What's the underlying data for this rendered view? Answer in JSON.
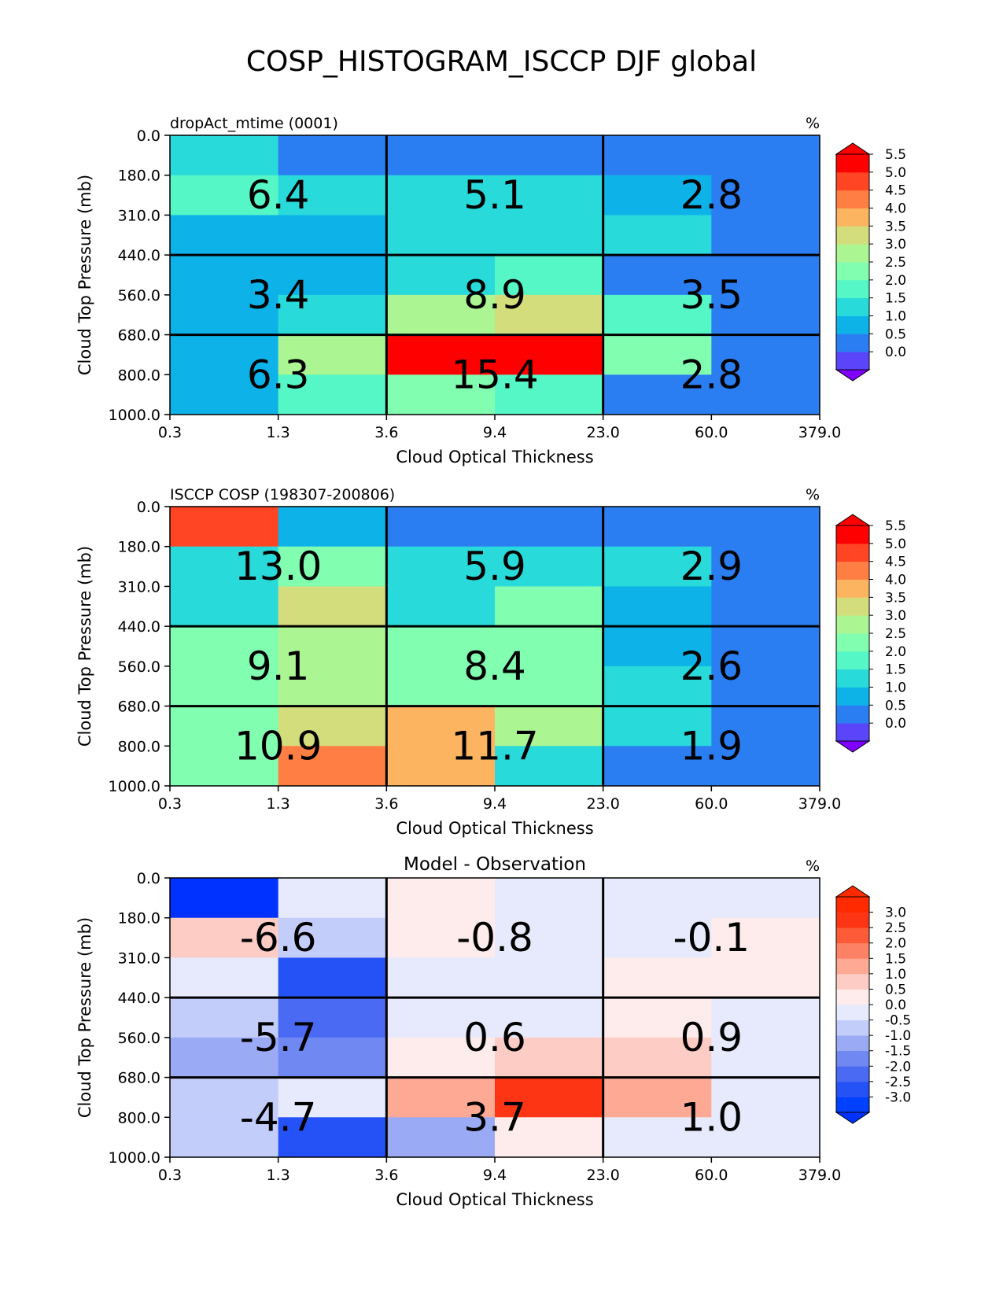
{
  "figure": {
    "title": "COSP_HISTOGRAM_ISCCP DJF global"
  },
  "shared": {
    "xlabel": "Cloud Optical Thickness",
    "ylabel": "Cloud Top Pressure (mb)",
    "x_ticks": [
      "0.3",
      "1.3",
      "3.6",
      "9.4",
      "23.0",
      "60.0",
      "379.0"
    ],
    "y_ticks": [
      "0.0",
      "180.0",
      "310.0",
      "440.0",
      "560.0",
      "680.0",
      "800.0",
      "1000.0"
    ],
    "units": "%"
  },
  "chart_data": [
    {
      "type": "heatmap",
      "title": "dropAct_mtime (0001)",
      "units": "%",
      "xlabel": "Cloud Optical Thickness",
      "ylabel": "Cloud Top Pressure (mb)",
      "x_bin_edges": [
        0.3,
        1.3,
        3.6,
        9.4,
        23.0,
        60.0,
        379.0
      ],
      "y_bin_edges": [
        0.0,
        180.0,
        310.0,
        440.0,
        560.0,
        680.0,
        800.0,
        1000.0
      ],
      "values": [
        [
          1.2,
          0.3,
          0.3,
          0.3,
          0.3,
          0.3
        ],
        [
          1.9,
          1.2,
          1.3,
          1.3,
          0.7,
          0.3
        ],
        [
          0.8,
          0.8,
          1.3,
          1.3,
          1.2,
          0.3
        ],
        [
          0.8,
          0.8,
          1.3,
          1.9,
          0.3,
          0.3
        ],
        [
          0.8,
          1.4,
          2.8,
          3.1,
          1.9,
          0.3
        ],
        [
          0.8,
          2.8,
          5.2,
          5.6,
          2.2,
          0.3
        ],
        [
          0.8,
          1.9,
          2.1,
          1.9,
          0.3,
          0.3
        ]
      ],
      "group_totals": [
        [
          "6.4",
          "5.1",
          "2.8"
        ],
        [
          "3.4",
          "8.9",
          "3.5"
        ],
        [
          "6.3",
          "15.4",
          "2.8"
        ]
      ],
      "colorbar": {
        "ticks": [
          "0.0",
          "0.5",
          "1.0",
          "1.5",
          "2.0",
          "2.5",
          "3.0",
          "3.5",
          "4.0",
          "4.5",
          "5.0",
          "5.5"
        ],
        "colors": [
          "#5a45fb",
          "#2b7ef2",
          "#0db3e8",
          "#29dadb",
          "#55f7c6",
          "#82feb0",
          "#abf693",
          "#d4dd7b",
          "#fcb461",
          "#ff7e43",
          "#ff4523",
          "#ff0000"
        ],
        "under": "#7f00ff",
        "over": "#ff0000"
      }
    },
    {
      "type": "heatmap",
      "title": "ISCCP COSP (198307-200806)",
      "units": "%",
      "xlabel": "Cloud Optical Thickness",
      "ylabel": "Cloud Top Pressure (mb)",
      "x_bin_edges": [
        0.3,
        1.3,
        3.6,
        9.4,
        23.0,
        60.0,
        379.0
      ],
      "y_bin_edges": [
        0.0,
        180.0,
        310.0,
        440.0,
        560.0,
        680.0,
        800.0,
        1000.0
      ],
      "values": [
        [
          4.6,
          0.8,
          0.3,
          0.3,
          0.3,
          0.3
        ],
        [
          1.3,
          2.0,
          1.3,
          1.3,
          1.3,
          0.3
        ],
        [
          1.3,
          3.3,
          1.3,
          2.0,
          0.8,
          0.3
        ],
        [
          2.0,
          2.8,
          2.0,
          2.2,
          0.8,
          0.3
        ],
        [
          2.0,
          2.8,
          2.2,
          2.3,
          1.2,
          0.3
        ],
        [
          2.0,
          3.1,
          3.6,
          2.6,
          1.2,
          0.3
        ],
        [
          2.0,
          4.2,
          3.6,
          1.2,
          0.3,
          0.3
        ]
      ],
      "group_totals": [
        [
          "13.0",
          "5.9",
          "2.9"
        ],
        [
          "9.1",
          "8.4",
          "2.6"
        ],
        [
          "10.9",
          "11.7",
          "1.9"
        ]
      ],
      "colorbar": {
        "ticks": [
          "0.0",
          "0.5",
          "1.0",
          "1.5",
          "2.0",
          "2.5",
          "3.0",
          "3.5",
          "4.0",
          "4.5",
          "5.0",
          "5.5"
        ],
        "colors": [
          "#5a45fb",
          "#2b7ef2",
          "#0db3e8",
          "#29dadb",
          "#55f7c6",
          "#82feb0",
          "#abf693",
          "#d4dd7b",
          "#fcb461",
          "#ff7e43",
          "#ff4523",
          "#ff0000"
        ],
        "under": "#7f00ff",
        "over": "#ff0000"
      }
    },
    {
      "type": "heatmap",
      "title": "Model - Observation",
      "units": "%",
      "xlabel": "Cloud Optical Thickness",
      "ylabel": "Cloud Top Pressure (mb)",
      "x_bin_edges": [
        0.3,
        1.3,
        3.6,
        9.4,
        23.0,
        60.0,
        379.0
      ],
      "y_bin_edges": [
        0.0,
        180.0,
        310.0,
        440.0,
        560.0,
        680.0,
        800.0,
        1000.0
      ],
      "values": [
        [
          -3.3,
          -0.1,
          0.1,
          -0.1,
          -0.1,
          -0.1
        ],
        [
          0.6,
          -0.8,
          0.1,
          -0.1,
          -0.1,
          0.1
        ],
        [
          -0.1,
          -2.6,
          -0.1,
          -0.1,
          0.1,
          0.1
        ],
        [
          -0.8,
          -2.1,
          -0.1,
          -0.1,
          0.1,
          -0.1
        ],
        [
          -1.1,
          -1.6,
          0.1,
          0.6,
          0.6,
          -0.1
        ],
        [
          -0.8,
          -0.1,
          1.1,
          2.6,
          1.1,
          -0.1
        ],
        [
          -0.8,
          -2.6,
          -1.1,
          0.1,
          -0.1,
          -0.1
        ]
      ],
      "group_totals": [
        [
          "-6.6",
          "-0.8",
          "-0.1"
        ],
        [
          "-5.7",
          "0.6",
          "0.9"
        ],
        [
          "-4.7",
          "3.7",
          "1.0"
        ]
      ],
      "colorbar": {
        "ticks": [
          "-3.0",
          "-2.5",
          "-2.0",
          "-1.5",
          "-1.0",
          "-0.5",
          "0.0",
          "0.5",
          "1.0",
          "1.5",
          "2.0",
          "2.5",
          "3.0"
        ],
        "colors": [
          "#0040ff",
          "#2552f7",
          "#4a6af3",
          "#7088f1",
          "#9aaaf4",
          "#c3cdfa",
          "#e6eafc",
          "#fdeceb",
          "#fdccc4",
          "#fda994",
          "#fd8265",
          "#fd5a38",
          "#fd3515",
          "#ff2a00"
        ],
        "under": "#0032ff",
        "over": "#ff2a00"
      }
    }
  ]
}
